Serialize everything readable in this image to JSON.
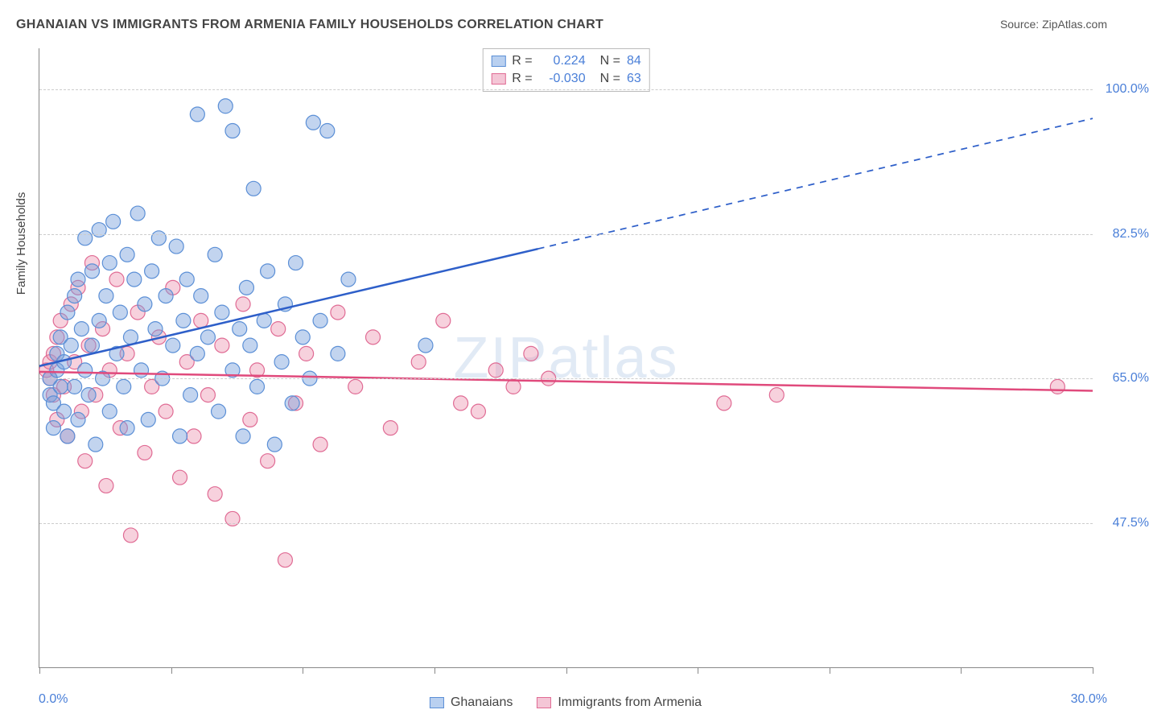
{
  "title": "GHANAIAN VS IMMIGRANTS FROM ARMENIA FAMILY HOUSEHOLDS CORRELATION CHART",
  "source_label": "Source: ZipAtlas.com",
  "watermark": "ZIPatlas",
  "chart": {
    "type": "scatter",
    "x_axis": {
      "min": 0,
      "max": 30,
      "ticks_at": [
        0,
        3.75,
        7.5,
        11.25,
        15,
        18.75,
        22.5,
        26.25,
        30
      ],
      "start_label": "0.0%",
      "end_label": "30.0%"
    },
    "y_axis": {
      "title": "Family Households",
      "min": 30,
      "max": 105,
      "gridlines": [
        47.5,
        65.0,
        82.5,
        100.0
      ],
      "grid_labels": [
        "47.5%",
        "65.0%",
        "82.5%",
        "100.0%"
      ]
    },
    "series": [
      {
        "id": "ghanaians",
        "label": "Ghanaians",
        "marker_color_fill": "rgba(120,160,220,0.45)",
        "marker_color_stroke": "#5b8fd6",
        "marker_radius": 9,
        "line_color": "#2e5fc9",
        "line_width": 2.5,
        "r_value": "0.224",
        "n_value": "84",
        "trend": {
          "y_at_x0": 66.5,
          "y_at_x30": 96.5,
          "solid_until_x": 14.2
        },
        "points": [
          {
            "x": 0.3,
            "y": 63
          },
          {
            "x": 0.3,
            "y": 65
          },
          {
            "x": 0.4,
            "y": 62
          },
          {
            "x": 0.4,
            "y": 59
          },
          {
            "x": 0.5,
            "y": 66
          },
          {
            "x": 0.5,
            "y": 68
          },
          {
            "x": 0.6,
            "y": 64
          },
          {
            "x": 0.6,
            "y": 70
          },
          {
            "x": 0.7,
            "y": 67
          },
          {
            "x": 0.7,
            "y": 61
          },
          {
            "x": 0.8,
            "y": 73
          },
          {
            "x": 0.8,
            "y": 58
          },
          {
            "x": 0.9,
            "y": 69
          },
          {
            "x": 1.0,
            "y": 64
          },
          {
            "x": 1.0,
            "y": 75
          },
          {
            "x": 1.1,
            "y": 77
          },
          {
            "x": 1.1,
            "y": 60
          },
          {
            "x": 1.2,
            "y": 71
          },
          {
            "x": 1.3,
            "y": 66
          },
          {
            "x": 1.3,
            "y": 82
          },
          {
            "x": 1.4,
            "y": 63
          },
          {
            "x": 1.5,
            "y": 78
          },
          {
            "x": 1.5,
            "y": 69
          },
          {
            "x": 1.6,
            "y": 57
          },
          {
            "x": 1.7,
            "y": 83
          },
          {
            "x": 1.7,
            "y": 72
          },
          {
            "x": 1.8,
            "y": 65
          },
          {
            "x": 1.9,
            "y": 75
          },
          {
            "x": 2.0,
            "y": 61
          },
          {
            "x": 2.0,
            "y": 79
          },
          {
            "x": 2.1,
            "y": 84
          },
          {
            "x": 2.2,
            "y": 68
          },
          {
            "x": 2.3,
            "y": 73
          },
          {
            "x": 2.4,
            "y": 64
          },
          {
            "x": 2.5,
            "y": 80
          },
          {
            "x": 2.5,
            "y": 59
          },
          {
            "x": 2.6,
            "y": 70
          },
          {
            "x": 2.7,
            "y": 77
          },
          {
            "x": 2.8,
            "y": 85
          },
          {
            "x": 2.9,
            "y": 66
          },
          {
            "x": 3.0,
            "y": 74
          },
          {
            "x": 3.1,
            "y": 60
          },
          {
            "x": 3.2,
            "y": 78
          },
          {
            "x": 3.3,
            "y": 71
          },
          {
            "x": 3.4,
            "y": 82
          },
          {
            "x": 3.5,
            "y": 65
          },
          {
            "x": 3.6,
            "y": 75
          },
          {
            "x": 3.8,
            "y": 69
          },
          {
            "x": 3.9,
            "y": 81
          },
          {
            "x": 4.0,
            "y": 58
          },
          {
            "x": 4.1,
            "y": 72
          },
          {
            "x": 4.2,
            "y": 77
          },
          {
            "x": 4.3,
            "y": 63
          },
          {
            "x": 4.5,
            "y": 97
          },
          {
            "x": 4.5,
            "y": 68
          },
          {
            "x": 4.6,
            "y": 75
          },
          {
            "x": 4.8,
            "y": 70
          },
          {
            "x": 5.0,
            "y": 80
          },
          {
            "x": 5.1,
            "y": 61
          },
          {
            "x": 5.2,
            "y": 73
          },
          {
            "x": 5.3,
            "y": 98
          },
          {
            "x": 5.5,
            "y": 66
          },
          {
            "x": 5.5,
            "y": 95
          },
          {
            "x": 5.7,
            "y": 71
          },
          {
            "x": 5.8,
            "y": 58
          },
          {
            "x": 5.9,
            "y": 76
          },
          {
            "x": 6.0,
            "y": 69
          },
          {
            "x": 6.1,
            "y": 88
          },
          {
            "x": 6.2,
            "y": 64
          },
          {
            "x": 6.4,
            "y": 72
          },
          {
            "x": 6.5,
            "y": 78
          },
          {
            "x": 6.7,
            "y": 57
          },
          {
            "x": 6.9,
            "y": 67
          },
          {
            "x": 7.0,
            "y": 74
          },
          {
            "x": 7.2,
            "y": 62
          },
          {
            "x": 7.3,
            "y": 79
          },
          {
            "x": 7.5,
            "y": 70
          },
          {
            "x": 7.7,
            "y": 65
          },
          {
            "x": 7.8,
            "y": 96
          },
          {
            "x": 8.0,
            "y": 72
          },
          {
            "x": 8.2,
            "y": 95
          },
          {
            "x": 8.5,
            "y": 68
          },
          {
            "x": 8.8,
            "y": 77
          },
          {
            "x": 11.0,
            "y": 69
          }
        ]
      },
      {
        "id": "armenia",
        "label": "Immigrants from Armenia",
        "marker_color_fill": "rgba(235,140,170,0.40)",
        "marker_color_stroke": "#e06b94",
        "marker_radius": 9,
        "line_color": "#e04a7c",
        "line_width": 2.5,
        "r_value": "-0.030",
        "n_value": "63",
        "trend": {
          "y_at_x0": 65.8,
          "y_at_x30": 63.5,
          "solid_until_x": 30
        },
        "points": [
          {
            "x": 0.2,
            "y": 66
          },
          {
            "x": 0.3,
            "y": 67
          },
          {
            "x": 0.3,
            "y": 65
          },
          {
            "x": 0.4,
            "y": 68
          },
          {
            "x": 0.4,
            "y": 63
          },
          {
            "x": 0.5,
            "y": 70
          },
          {
            "x": 0.5,
            "y": 60
          },
          {
            "x": 0.6,
            "y": 72
          },
          {
            "x": 0.7,
            "y": 64
          },
          {
            "x": 0.8,
            "y": 58
          },
          {
            "x": 0.9,
            "y": 74
          },
          {
            "x": 1.0,
            "y": 67
          },
          {
            "x": 1.1,
            "y": 76
          },
          {
            "x": 1.2,
            "y": 61
          },
          {
            "x": 1.3,
            "y": 55
          },
          {
            "x": 1.4,
            "y": 69
          },
          {
            "x": 1.5,
            "y": 79
          },
          {
            "x": 1.6,
            "y": 63
          },
          {
            "x": 1.8,
            "y": 71
          },
          {
            "x": 1.9,
            "y": 52
          },
          {
            "x": 2.0,
            "y": 66
          },
          {
            "x": 2.2,
            "y": 77
          },
          {
            "x": 2.3,
            "y": 59
          },
          {
            "x": 2.5,
            "y": 68
          },
          {
            "x": 2.6,
            "y": 46
          },
          {
            "x": 2.8,
            "y": 73
          },
          {
            "x": 3.0,
            "y": 56
          },
          {
            "x": 3.2,
            "y": 64
          },
          {
            "x": 3.4,
            "y": 70
          },
          {
            "x": 3.6,
            "y": 61
          },
          {
            "x": 3.8,
            "y": 76
          },
          {
            "x": 4.0,
            "y": 53
          },
          {
            "x": 4.2,
            "y": 67
          },
          {
            "x": 4.4,
            "y": 58
          },
          {
            "x": 4.6,
            "y": 72
          },
          {
            "x": 4.8,
            "y": 63
          },
          {
            "x": 5.0,
            "y": 51
          },
          {
            "x": 5.2,
            "y": 69
          },
          {
            "x": 5.5,
            "y": 48
          },
          {
            "x": 5.8,
            "y": 74
          },
          {
            "x": 6.0,
            "y": 60
          },
          {
            "x": 6.2,
            "y": 66
          },
          {
            "x": 6.5,
            "y": 55
          },
          {
            "x": 6.8,
            "y": 71
          },
          {
            "x": 7.0,
            "y": 43
          },
          {
            "x": 7.3,
            "y": 62
          },
          {
            "x": 7.6,
            "y": 68
          },
          {
            "x": 8.0,
            "y": 57
          },
          {
            "x": 8.5,
            "y": 73
          },
          {
            "x": 9.0,
            "y": 64
          },
          {
            "x": 9.5,
            "y": 70
          },
          {
            "x": 10.0,
            "y": 59
          },
          {
            "x": 10.8,
            "y": 67
          },
          {
            "x": 11.5,
            "y": 72
          },
          {
            "x": 12.0,
            "y": 62
          },
          {
            "x": 12.5,
            "y": 61
          },
          {
            "x": 13.0,
            "y": 66
          },
          {
            "x": 13.5,
            "y": 64
          },
          {
            "x": 14.0,
            "y": 68
          },
          {
            "x": 14.5,
            "y": 65
          },
          {
            "x": 19.5,
            "y": 62
          },
          {
            "x": 21.0,
            "y": 63
          },
          {
            "x": 29.0,
            "y": 64
          }
        ]
      }
    ],
    "swatch_colors": {
      "ghanaians_fill": "#b9d0f0",
      "ghanaians_border": "#5b8fd6",
      "armenia_fill": "#f4c6d6",
      "armenia_border": "#e06b94"
    },
    "legend_stat_labels": {
      "r": "R =",
      "n": "N ="
    }
  }
}
